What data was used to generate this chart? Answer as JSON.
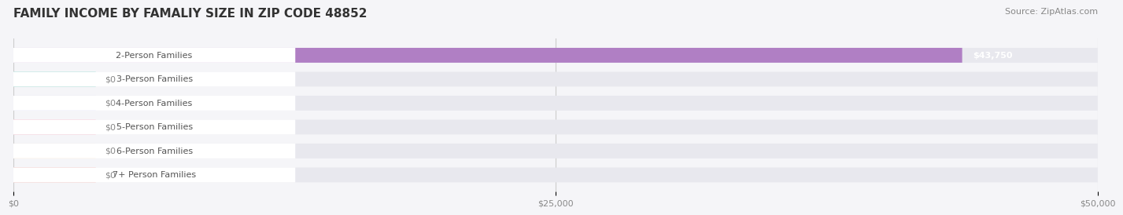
{
  "title": "FAMILY INCOME BY FAMALIY SIZE IN ZIP CODE 48852",
  "source": "Source: ZipAtlas.com",
  "categories": [
    "2-Person Families",
    "3-Person Families",
    "4-Person Families",
    "5-Person Families",
    "6-Person Families",
    "7+ Person Families"
  ],
  "values": [
    43750,
    0,
    0,
    0,
    0,
    0
  ],
  "bar_colors": [
    "#b07fc4",
    "#5fc4b8",
    "#a8a8e8",
    "#f7a0b8",
    "#f7c88c",
    "#f0a8a0"
  ],
  "label_colors": [
    "#b07fc4",
    "#5fc4b8",
    "#a8a8e8",
    "#f7a0b8",
    "#f7c88c",
    "#f0a8a0"
  ],
  "value_labels": [
    "$43,750",
    "$0",
    "$0",
    "$0",
    "$0",
    "$0"
  ],
  "xlim": [
    0,
    50000
  ],
  "xticks": [
    0,
    25000,
    50000
  ],
  "xtick_labels": [
    "$0",
    "$25,000",
    "$50,000"
  ],
  "bg_color": "#f5f5f8",
  "bar_bg_color": "#e8e8ee",
  "title_fontsize": 11,
  "source_fontsize": 8,
  "label_fontsize": 8,
  "value_fontsize": 8
}
